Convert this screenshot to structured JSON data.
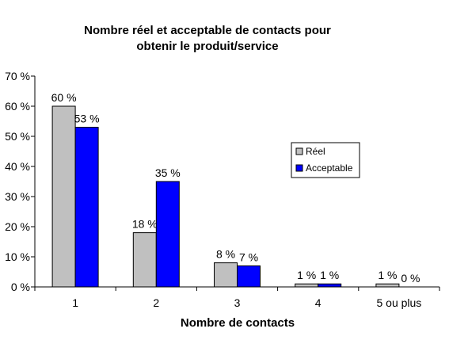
{
  "chart_data": {
    "type": "bar",
    "title": [
      "Nombre réel et acceptable de contacts pour",
      "obtenir le produit/service"
    ],
    "xlabel": "Nombre de contacts",
    "ylabel": "",
    "categories": [
      "1",
      "2",
      "3",
      "4",
      "5 ou plus"
    ],
    "series": [
      {
        "name": "Réel",
        "color": "#c0c0c0",
        "values": [
          60,
          18,
          8,
          1,
          1
        ],
        "labels": [
          "60 %",
          "18 %",
          "8 %",
          "1 %",
          "1 %"
        ]
      },
      {
        "name": "Acceptable",
        "color": "#0000ff",
        "values": [
          53,
          35,
          7,
          1,
          0
        ],
        "labels": [
          "53 %",
          "35 %",
          "7 %",
          "1 %",
          "0 %"
        ]
      }
    ],
    "ylim": [
      0,
      70
    ],
    "yticks": [
      0,
      10,
      20,
      30,
      40,
      50,
      60,
      70
    ],
    "ytick_labels": [
      "0 %",
      "10 %",
      "20 %",
      "30 %",
      "40 %",
      "50 %",
      "60 %",
      "70 %"
    ],
    "grid": false,
    "legend": "right"
  }
}
